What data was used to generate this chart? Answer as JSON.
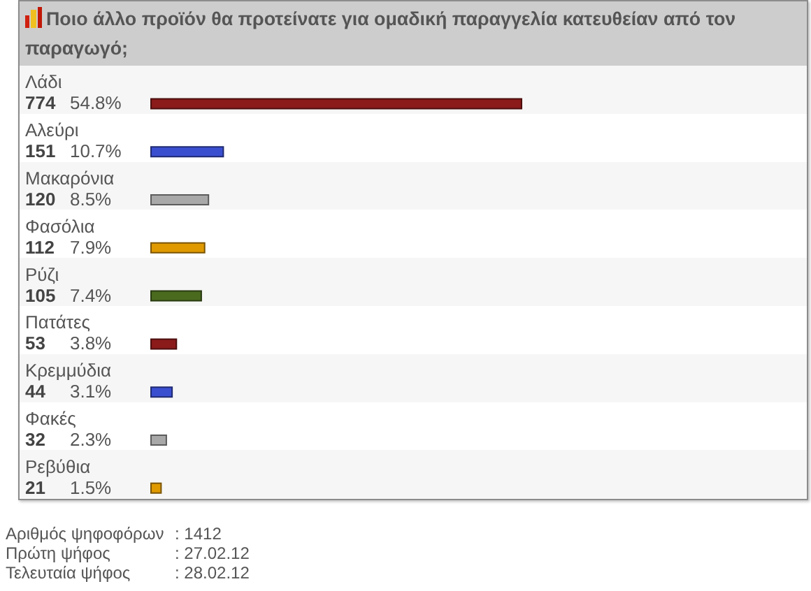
{
  "chart_data": {
    "type": "bar",
    "orientation": "horizontal",
    "title": "Ποιο άλλο προϊόν θα προτείνατε για ομαδική παραγγελία κατευθείαν από τον παραγωγό;",
    "categories": [
      "Λάδι",
      "Αλεύρι",
      "Μακαρόνια",
      "Φασόλια",
      "Ρύζι",
      "Πατάτες",
      "Κρεμμύδια",
      "Φακές",
      "Ρεβύθια"
    ],
    "values": [
      774,
      151,
      120,
      112,
      105,
      53,
      44,
      32,
      21
    ],
    "colors": [
      "#8b1a1a",
      "#3a4fd0",
      "#a8a8a8",
      "#e09a00",
      "#4a6a1e",
      "#8b1a1a",
      "#3a4fd0",
      "#a8a8a8",
      "#e09a00"
    ],
    "value_labels": [
      "774 54.8%",
      "151 10.7%",
      "120 8.5%",
      "112 7.9%",
      "105 7.4%",
      "53 3.8%",
      "44 3.1%",
      "32 2.3%",
      "21 1.5%"
    ],
    "annotations": [
      "Αριθμός ψηφοφόρων : 1412",
      "Πρώτη ψήφος : 27.02.12",
      "Τελευταία ψήφος : 28.02.12"
    ]
  }
}
